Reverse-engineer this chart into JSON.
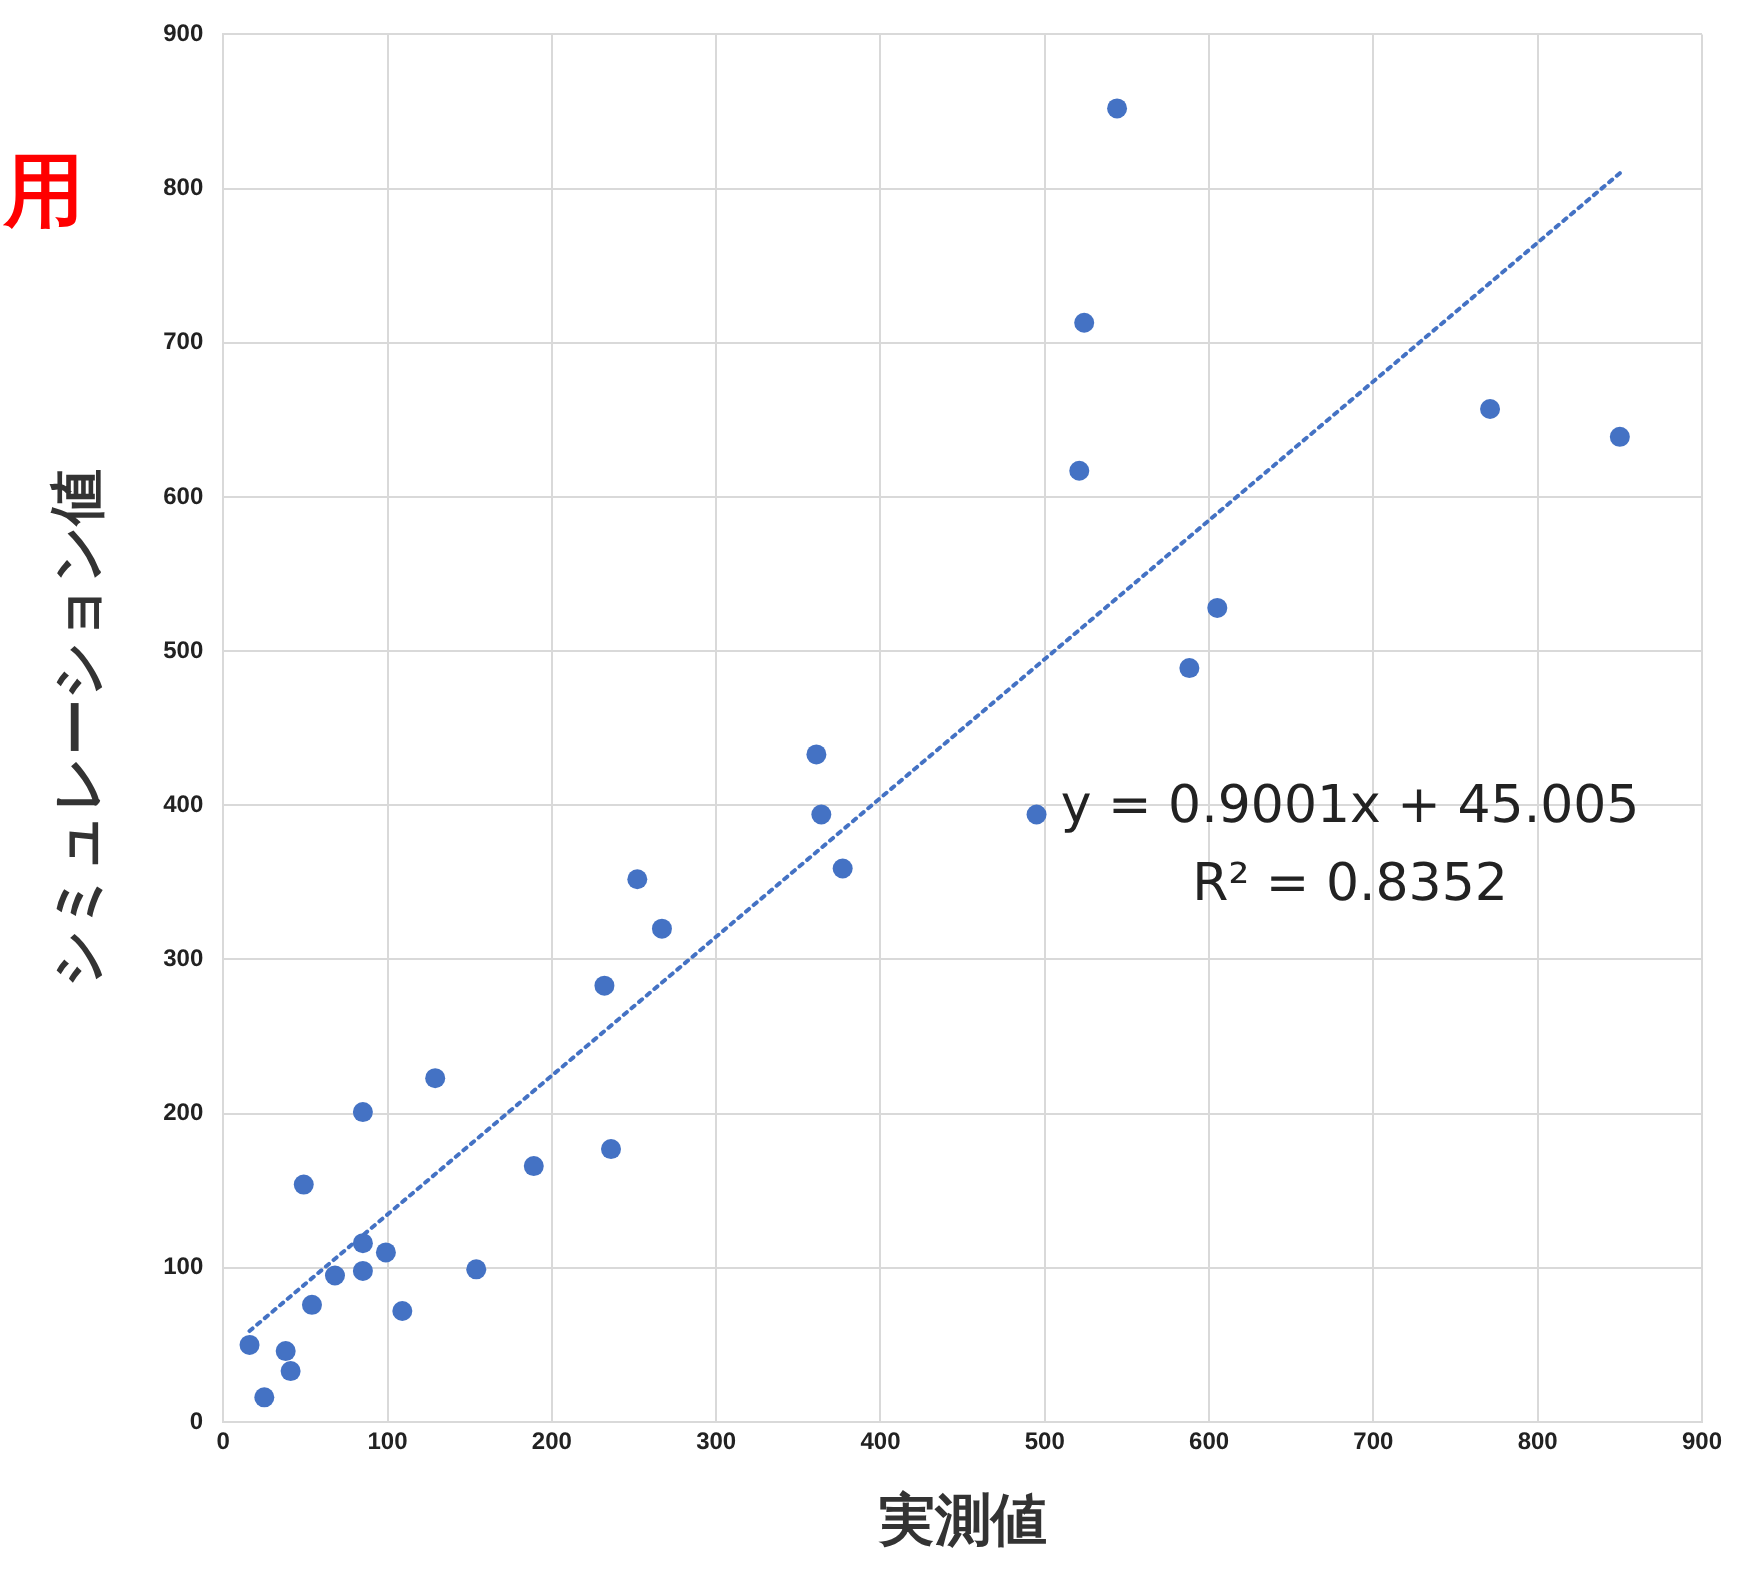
{
  "chart_data": {
    "type": "scatter",
    "title": "用",
    "xlabel": "実測値",
    "ylabel": "シミュレーション値",
    "xlim": [
      0,
      900
    ],
    "xticks": [
      0,
      100,
      200,
      300,
      400,
      500,
      600,
      700,
      800,
      900
    ],
    "ylim": [
      0,
      900
    ],
    "yticks": [
      0,
      100,
      200,
      300,
      400,
      500,
      600,
      700,
      800,
      900
    ],
    "grid": true,
    "legend": false,
    "marker": "circle",
    "series": [
      {
        "type": "scatter",
        "color": "#4472c4",
        "x": [
          16,
          25,
          38,
          41,
          49,
          54,
          68,
          85,
          85,
          85,
          99,
          109,
          129,
          154,
          189,
          236,
          232,
          252,
          267,
          361,
          364,
          377,
          495,
          544,
          524,
          521,
          605,
          588,
          771,
          850
        ],
        "values": [
          50,
          16,
          46,
          33,
          154,
          76,
          95,
          116,
          98,
          201,
          110,
          72,
          223,
          99,
          166,
          177,
          283,
          352,
          320,
          433,
          394,
          359,
          394,
          852,
          713,
          617,
          528,
          489,
          657,
          639
        ]
      },
      {
        "type": "line",
        "color": "#4472c4",
        "line_style": "dotted",
        "marker": "none",
        "x": [
          16,
          850
        ],
        "values": [
          59,
          810
        ]
      }
    ],
    "annotations": [
      "y = 0.9001x + 45.005",
      "R² = 0.8352"
    ]
  }
}
